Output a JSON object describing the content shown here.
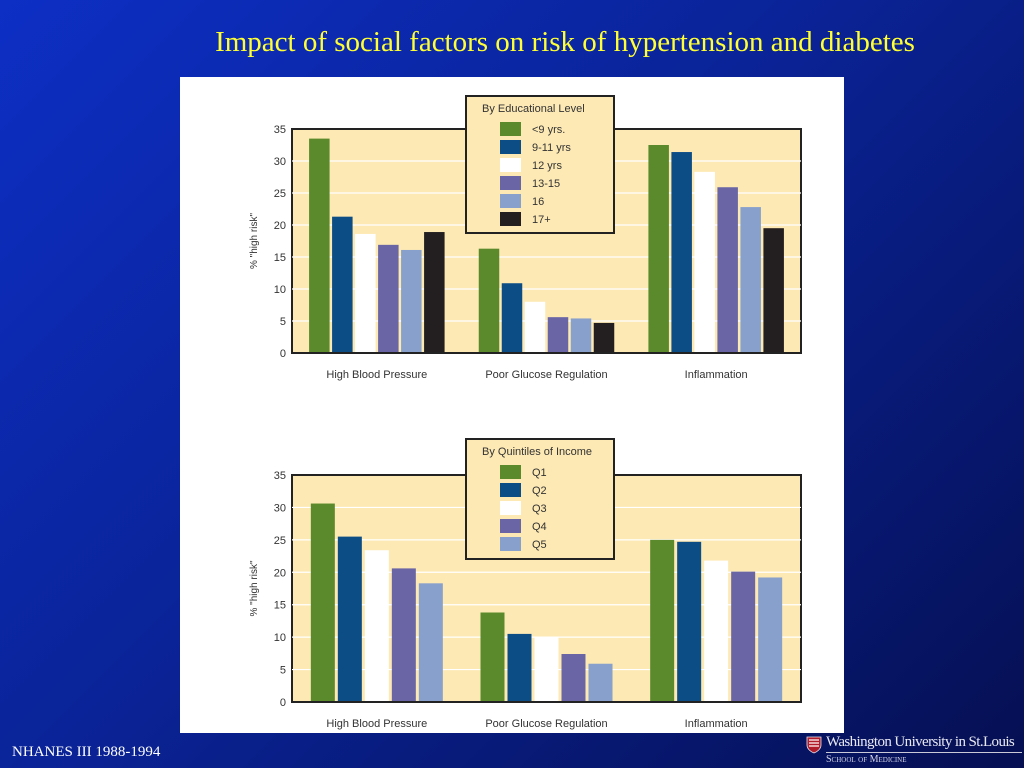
{
  "slide": {
    "title": "Impact of social factors on risk of hypertension and diabetes",
    "footer": "NHANES III 1988-1994",
    "institution": "Washington University in St.Louis",
    "institution_sub": "School of Medicine"
  },
  "colors": {
    "background": "#0a2397",
    "title": "#ffff33",
    "plot_background": "#fde9b4",
    "series": [
      "#5b8a2c",
      "#0d4d86",
      "#ffffff",
      "#6a66a6",
      "#88a0cc",
      "#231f20"
    ]
  },
  "chart_data": [
    {
      "type": "bar",
      "legend_title": "By Educational Level",
      "legend_position": "top-center",
      "ylabel": "% \"high risk\"",
      "ylim": [
        0,
        35
      ],
      "yticks": [
        0,
        5,
        10,
        15,
        20,
        25,
        30,
        35
      ],
      "categories": [
        "High Blood Pressure",
        "Poor Glucose Regulation",
        "Inflammation"
      ],
      "series": [
        {
          "name": "<9 yrs.",
          "values": [
            33.5,
            16.3,
            32.5
          ]
        },
        {
          "name": "9-11 yrs",
          "values": [
            21.3,
            10.9,
            31.4
          ]
        },
        {
          "name": "12 yrs",
          "values": [
            18.6,
            8.0,
            28.3
          ]
        },
        {
          "name": "13-15",
          "values": [
            16.9,
            5.6,
            25.9
          ]
        },
        {
          "name": "16",
          "values": [
            16.1,
            5.4,
            22.8
          ]
        },
        {
          "name": "17+",
          "values": [
            18.9,
            4.7,
            19.5
          ]
        }
      ]
    },
    {
      "type": "bar",
      "legend_title": "By Quintiles of Income",
      "legend_position": "top-center",
      "ylabel": "% \"high risk\"",
      "ylim": [
        0,
        35
      ],
      "yticks": [
        0,
        5,
        10,
        15,
        20,
        25,
        30,
        35
      ],
      "categories": [
        "High Blood Pressure",
        "Poor Glucose Regulation",
        "Inflammation"
      ],
      "series": [
        {
          "name": "Q1",
          "values": [
            30.6,
            13.8,
            25.0
          ]
        },
        {
          "name": "Q2",
          "values": [
            25.5,
            10.5,
            24.7
          ]
        },
        {
          "name": "Q3",
          "values": [
            23.4,
            10.1,
            21.8
          ]
        },
        {
          "name": "Q4",
          "values": [
            20.6,
            7.4,
            20.1
          ]
        },
        {
          "name": "Q5",
          "values": [
            18.3,
            5.9,
            19.2
          ]
        }
      ]
    }
  ]
}
